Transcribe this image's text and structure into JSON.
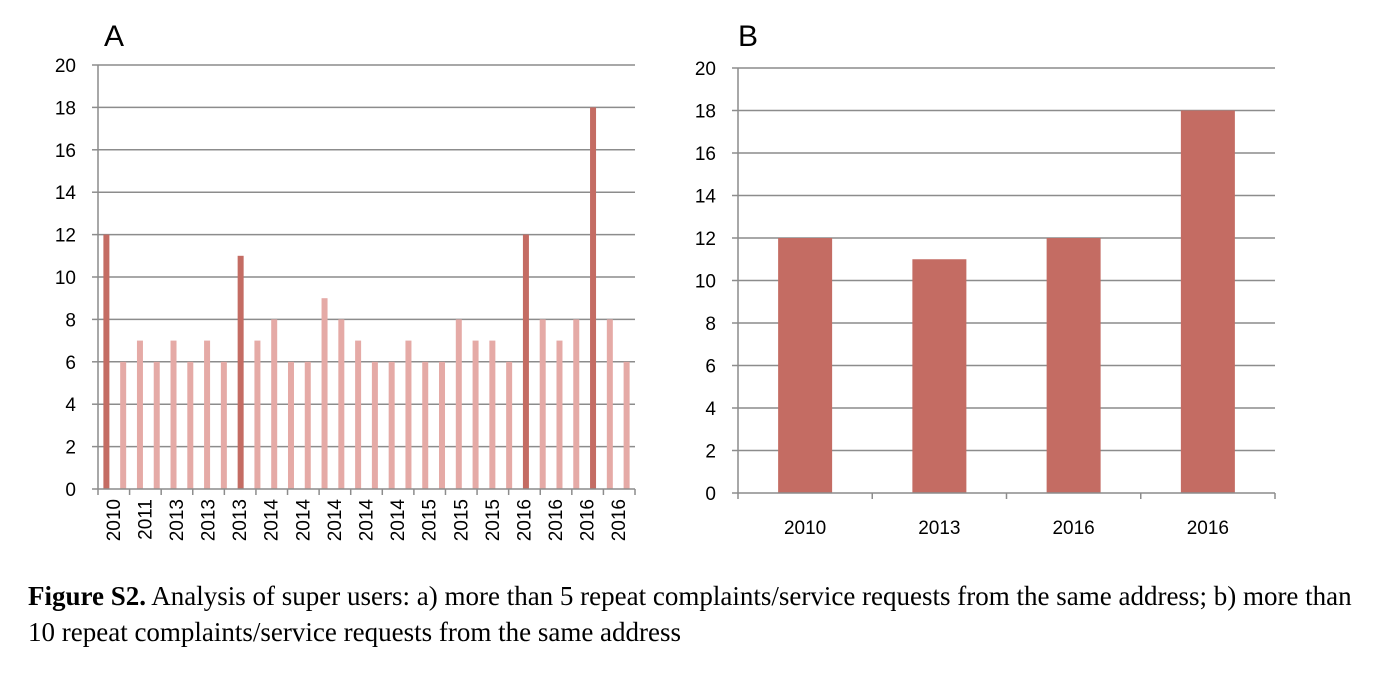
{
  "colors": {
    "highlight": "#c46c63",
    "light": "#e5aaa6",
    "grid": "#8c8c8c",
    "text": "#000000"
  },
  "chart_data": [
    {
      "type": "bar",
      "panel_label": "A",
      "ylim": [
        0,
        20
      ],
      "yticks": [
        "0",
        "2",
        "4",
        "6",
        "8",
        "10",
        "12",
        "14",
        "16",
        "18",
        "20"
      ],
      "grid": true,
      "categories": [
        "2010",
        "2010",
        "2011",
        "2011",
        "2013",
        "2013",
        "2013",
        "2013",
        "2013",
        "2013",
        "2014",
        "2014",
        "2014",
        "2014",
        "2014",
        "2014",
        "2014",
        "2014",
        "2015",
        "2015",
        "2015",
        "2015",
        "2015",
        "2015",
        "2016",
        "2016",
        "2016",
        "2016",
        "2016",
        "2016",
        "2016",
        "2016"
      ],
      "tick_labels": [
        "2010",
        "2011",
        "2013",
        "2013",
        "2013",
        "2014",
        "2014",
        "2014",
        "2014",
        "2014",
        "2015",
        "2015",
        "2015",
        "2016",
        "2016",
        "2016",
        "2016"
      ],
      "values": [
        12,
        6,
        7,
        6,
        7,
        6,
        7,
        6,
        11,
        7,
        8,
        6,
        6,
        9,
        8,
        7,
        6,
        6,
        7,
        6,
        6,
        8,
        7,
        7,
        6,
        12,
        8,
        7,
        8,
        18,
        8,
        6
      ],
      "highlight": [
        true,
        false,
        false,
        false,
        false,
        false,
        false,
        false,
        true,
        false,
        false,
        false,
        false,
        false,
        false,
        false,
        false,
        false,
        false,
        false,
        false,
        false,
        false,
        false,
        false,
        true,
        false,
        false,
        false,
        true,
        false,
        false
      ]
    },
    {
      "type": "bar",
      "panel_label": "B",
      "ylim": [
        0,
        20
      ],
      "yticks": [
        "0",
        "2",
        "4",
        "6",
        "8",
        "10",
        "12",
        "14",
        "16",
        "18",
        "20"
      ],
      "grid": true,
      "categories": [
        "2010",
        "2013",
        "2016",
        "2016"
      ],
      "values": [
        12,
        11,
        12,
        18
      ]
    }
  ],
  "caption": {
    "label": "Figure S2.",
    "text": " Analysis of super users: a) more than 5 repeat complaints/service requests from the same address; b) more than 10 repeat complaints/service requests from the same address"
  }
}
